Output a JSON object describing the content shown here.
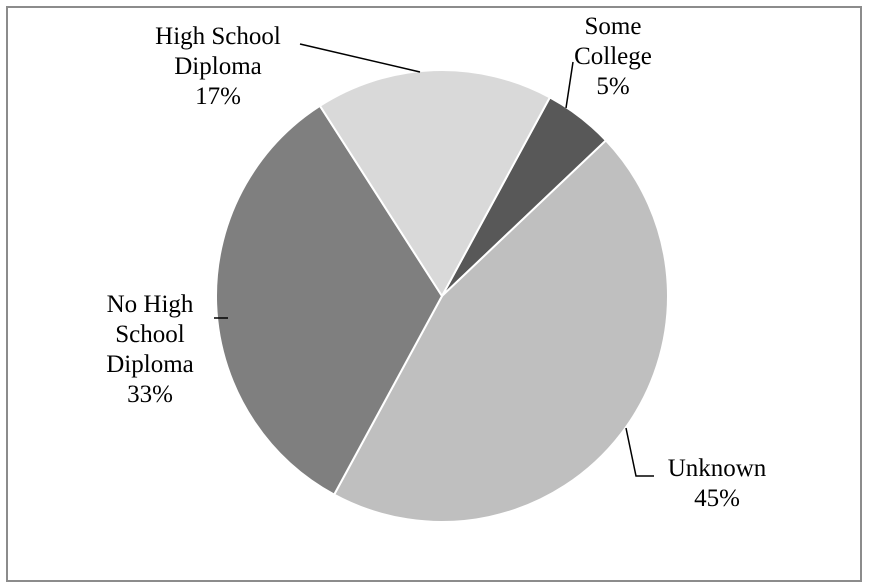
{
  "chart_data": {
    "type": "pie",
    "title": "",
    "slices": [
      {
        "label_lines": [
          "Some",
          "College"
        ],
        "percent_label": "5%",
        "value": 5,
        "color": "#585858"
      },
      {
        "label_lines": [
          "Unknown"
        ],
        "percent_label": "45%",
        "value": 45,
        "color": "#bfbfbf"
      },
      {
        "label_lines": [
          "No High",
          "School",
          "Diploma"
        ],
        "percent_label": "33%",
        "value": 33,
        "color": "#7f7f7f"
      },
      {
        "label_lines": [
          "High School",
          "Diploma"
        ],
        "percent_label": "17%",
        "value": 17,
        "color": "#d9d9d9"
      }
    ]
  }
}
